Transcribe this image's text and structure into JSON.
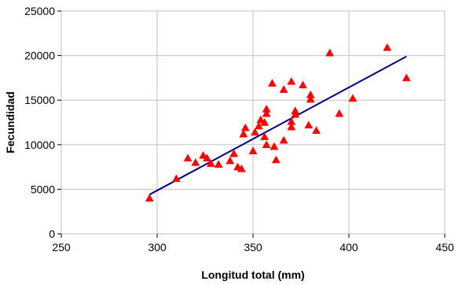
{
  "chart_data": {
    "type": "scatter",
    "title": "",
    "xlabel": "Longitud total (mm)",
    "ylabel": "Fecundidad",
    "xlim": [
      250,
      450
    ],
    "ylim": [
      0,
      25000
    ],
    "x_ticks": [
      250,
      300,
      350,
      400,
      450
    ],
    "y_ticks": [
      0,
      5000,
      10000,
      15000,
      20000,
      25000
    ],
    "x_tick_labels": [
      "250",
      "300",
      "350",
      "400",
      "450"
    ],
    "y_tick_labels": [
      "0",
      "5000",
      "10000",
      "15000",
      "20000",
      "25000"
    ],
    "grid": true,
    "legend": "none",
    "colors": {
      "points": "#ff0000",
      "trendline": "#000080",
      "grid": "#c0c0c0",
      "axis": "#000000"
    },
    "series": [
      {
        "type": "scatter",
        "marker": "triangle",
        "points": [
          [
            296,
            4000
          ],
          [
            310,
            6200
          ],
          [
            316,
            8500
          ],
          [
            320,
            8000
          ],
          [
            324,
            8800
          ],
          [
            326,
            8500
          ],
          [
            328,
            7900
          ],
          [
            332,
            7800
          ],
          [
            338,
            8200
          ],
          [
            340,
            9000
          ],
          [
            342,
            7500
          ],
          [
            344,
            7300
          ],
          [
            345,
            11200
          ],
          [
            346,
            11900
          ],
          [
            350,
            9300
          ],
          [
            351,
            11400
          ],
          [
            353,
            12100
          ],
          [
            354,
            12800
          ],
          [
            356,
            12500
          ],
          [
            356,
            10900
          ],
          [
            357,
            13500
          ],
          [
            357,
            14000
          ],
          [
            357,
            10000
          ],
          [
            360,
            16900
          ],
          [
            361,
            9800
          ],
          [
            362,
            8300
          ],
          [
            366,
            16200
          ],
          [
            366,
            10500
          ],
          [
            370,
            17100
          ],
          [
            370,
            12000
          ],
          [
            370,
            12600
          ],
          [
            372,
            13800
          ],
          [
            372,
            13400
          ],
          [
            376,
            16700
          ],
          [
            379,
            12200
          ],
          [
            380,
            15600
          ],
          [
            380,
            15100
          ],
          [
            383,
            11600
          ],
          [
            390,
            20300
          ],
          [
            395,
            13500
          ],
          [
            402,
            15200
          ],
          [
            420,
            20900
          ],
          [
            430,
            17500
          ]
        ]
      },
      {
        "type": "line",
        "points": [
          [
            296,
            4400
          ],
          [
            430,
            19900
          ]
        ]
      }
    ]
  }
}
